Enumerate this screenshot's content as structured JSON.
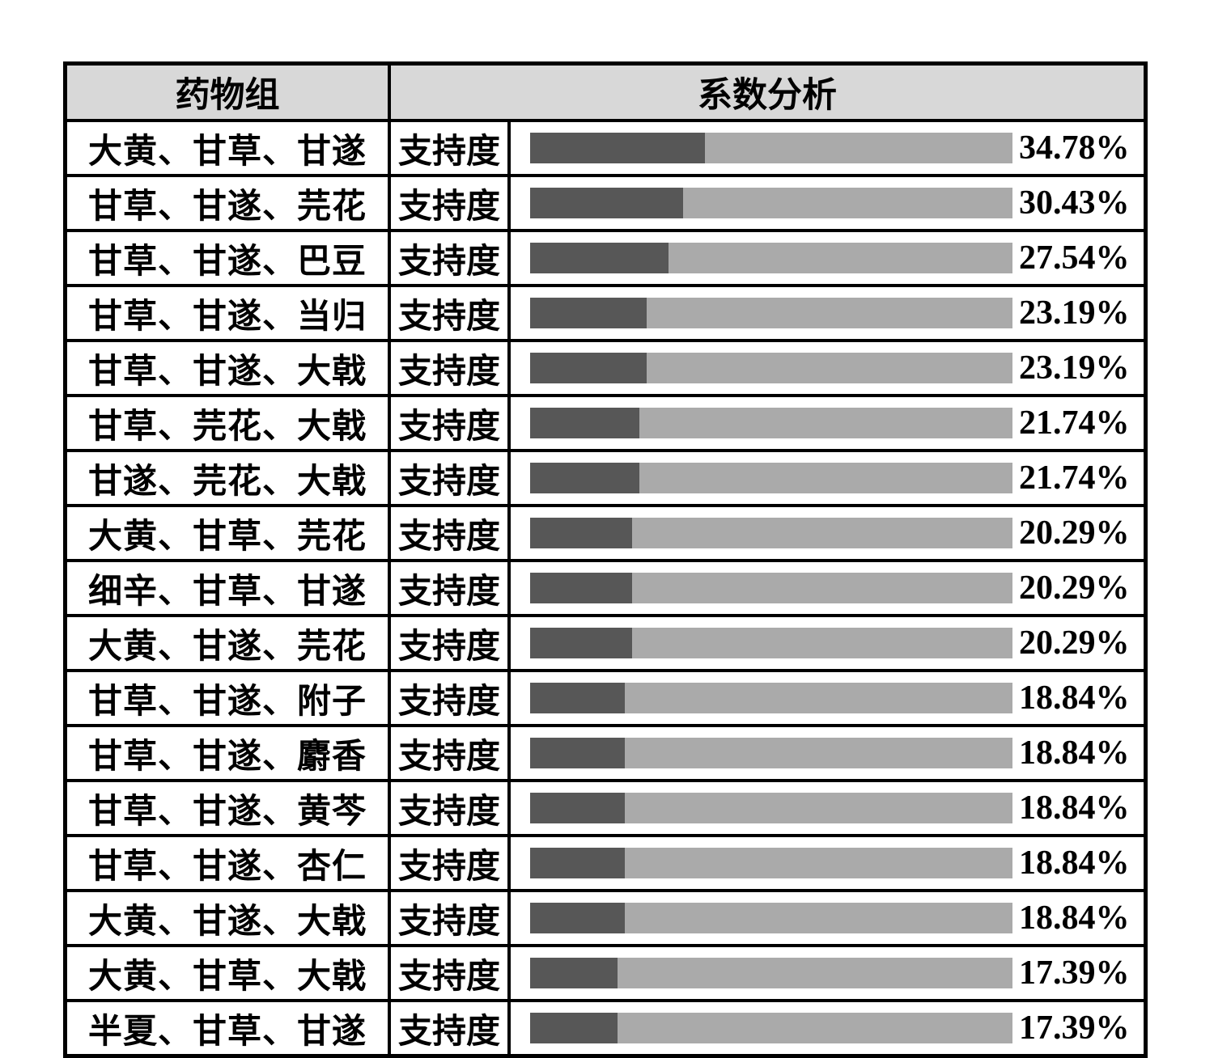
{
  "table": {
    "header": {
      "drug_group_col": "药物组",
      "analysis_col": "系数分析"
    },
    "rows": [
      {
        "group": "大黄、甘草、甘遂",
        "metric": "支持度",
        "value": 34.78,
        "value_label": "34.78%"
      },
      {
        "group": "甘草、甘遂、芫花",
        "metric": "支持度",
        "value": 30.43,
        "value_label": "30.43%"
      },
      {
        "group": "甘草、甘遂、巴豆",
        "metric": "支持度",
        "value": 27.54,
        "value_label": "27.54%"
      },
      {
        "group": "甘草、甘遂、当归",
        "metric": "支持度",
        "value": 23.19,
        "value_label": "23.19%"
      },
      {
        "group": "甘草、甘遂、大戟",
        "metric": "支持度",
        "value": 23.19,
        "value_label": "23.19%"
      },
      {
        "group": "甘草、芫花、大戟",
        "metric": "支持度",
        "value": 21.74,
        "value_label": "21.74%"
      },
      {
        "group": "甘遂、芫花、大戟",
        "metric": "支持度",
        "value": 21.74,
        "value_label": "21.74%"
      },
      {
        "group": "大黄、甘草、芫花",
        "metric": "支持度",
        "value": 20.29,
        "value_label": "20.29%"
      },
      {
        "group": "细辛、甘草、甘遂",
        "metric": "支持度",
        "value": 20.29,
        "value_label": "20.29%"
      },
      {
        "group": "大黄、甘遂、芫花",
        "metric": "支持度",
        "value": 20.29,
        "value_label": "20.29%"
      },
      {
        "group": "甘草、甘遂、附子",
        "metric": "支持度",
        "value": 18.84,
        "value_label": "18.84%"
      },
      {
        "group": "甘草、甘遂、麝香",
        "metric": "支持度",
        "value": 18.84,
        "value_label": "18.84%"
      },
      {
        "group": "甘草、甘遂、黄芩",
        "metric": "支持度",
        "value": 18.84,
        "value_label": "18.84%"
      },
      {
        "group": "甘草、甘遂、杏仁",
        "metric": "支持度",
        "value": 18.84,
        "value_label": "18.84%"
      },
      {
        "group": "大黄、甘遂、大戟",
        "metric": "支持度",
        "value": 18.84,
        "value_label": "18.84%"
      },
      {
        "group": "大黄、甘草、大戟",
        "metric": "支持度",
        "value": 17.39,
        "value_label": "17.39%"
      },
      {
        "group": "半夏、甘草、甘遂",
        "metric": "支持度",
        "value": 17.39,
        "value_label": "17.39%"
      }
    ]
  },
  "chart_data": {
    "type": "bar",
    "orientation": "horizontal",
    "title": "系数分析",
    "xlabel": "",
    "ylabel": "药物组",
    "categories": [
      "大黄、甘草、甘遂",
      "甘草、甘遂、芫花",
      "甘草、甘遂、巴豆",
      "甘草、甘遂、当归",
      "甘草、甘遂、大戟",
      "甘草、芫花、大戟",
      "甘遂、芫花、大戟",
      "大黄、甘草、芫花",
      "细辛、甘草、甘遂",
      "大黄、甘遂、芫花",
      "甘草、甘遂、附子",
      "甘草、甘遂、麝香",
      "甘草、甘遂、黄芩",
      "甘草、甘遂、杏仁",
      "大黄、甘遂、大戟",
      "大黄、甘草、大戟",
      "半夏、甘草、甘遂"
    ],
    "series": [
      {
        "name": "支持度",
        "values": [
          34.78,
          30.43,
          27.54,
          23.19,
          23.19,
          21.74,
          21.74,
          20.29,
          20.29,
          20.29,
          18.84,
          18.84,
          18.84,
          18.84,
          18.84,
          17.39,
          17.39
        ]
      }
    ],
    "value_suffix": "%",
    "xlim": [
      0,
      96
    ],
    "grid": false,
    "legend_position": "none",
    "data_labels": true
  },
  "colors": {
    "header_bg": "#d8d8d8",
    "border": "#000000",
    "bar_fill": "#575757",
    "bar_track": "#aaaaaa",
    "text": "#000000"
  }
}
